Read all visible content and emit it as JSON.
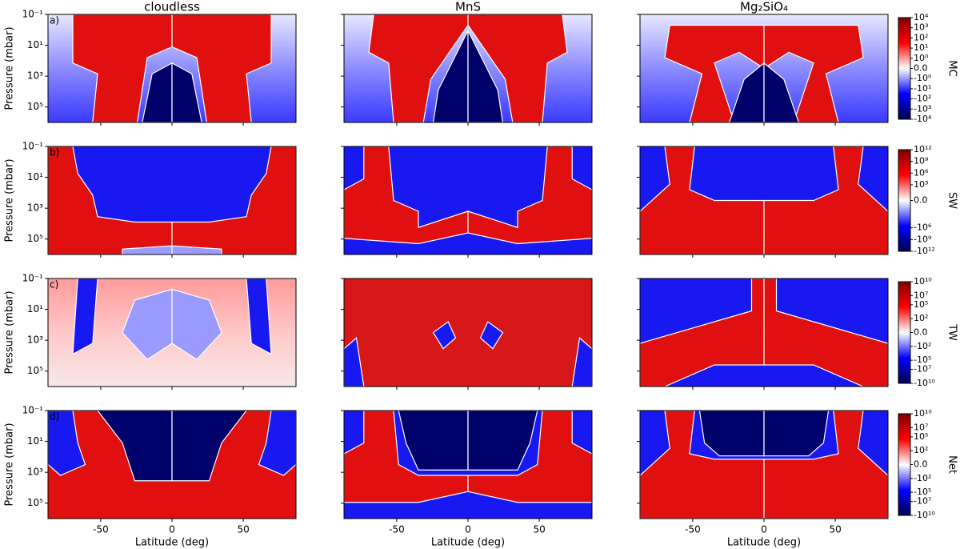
{
  "chart_data": {
    "type": "contour_grid",
    "columns": [
      "cloudless",
      "MnS",
      "Mg₂SiO₄"
    ],
    "xlabel": "Latitude (deg)",
    "ylabel": "Pressure (mbar)",
    "xlim": [
      -87,
      87
    ],
    "xticks": [
      -50,
      0,
      50
    ],
    "ylim": [
      1000000,
      0.1
    ],
    "log_y": true,
    "yticks": [
      {
        "value": 0.1,
        "label": "10⁻¹"
      },
      {
        "value": 10,
        "label": "10¹"
      },
      {
        "value": 1000,
        "label": "10³"
      },
      {
        "value": 100000,
        "label": "10⁵"
      }
    ],
    "colormap": [
      "#00004c",
      "#0000ff",
      "#ffffff",
      "#ff0000",
      "#800000"
    ],
    "rows": [
      {
        "panel": "a)",
        "colorbar_label": "MC",
        "clim": [
          -10000,
          10000
        ],
        "colorbar_ticks": [
          {
            "value": 10000,
            "label": "10⁴"
          },
          {
            "value": 1000,
            "label": "10³"
          },
          {
            "value": 100,
            "label": "10²"
          },
          {
            "value": 10,
            "label": "10¹"
          },
          {
            "value": 1,
            "label": "10⁰"
          },
          {
            "value": 0,
            "label": "0.0"
          },
          {
            "value": -1,
            "label": "-10⁰"
          },
          {
            "value": -10,
            "label": "-10¹"
          },
          {
            "value": -100,
            "label": "-10²"
          },
          {
            "value": -1000,
            "label": "-10³"
          },
          {
            "value": -10000,
            "label": "-10⁴"
          }
        ]
      },
      {
        "panel": "b)",
        "colorbar_label": "SW",
        "clim": [
          -1000000000000,
          1000000000000
        ],
        "colorbar_ticks": [
          {
            "value": 1000000000000,
            "label": "10¹²"
          },
          {
            "value": 1000000000,
            "label": "10⁹"
          },
          {
            "value": 1000000,
            "label": "10⁶"
          },
          {
            "value": 1000,
            "label": "10³"
          },
          {
            "value": 0,
            "label": "0.0"
          },
          {
            "value": -1000000,
            "label": "-10⁶"
          },
          {
            "value": -1000000000,
            "label": "-10⁹"
          },
          {
            "value": -1000000000000,
            "label": "-10¹²"
          }
        ]
      },
      {
        "panel": "c)",
        "colorbar_label": "TW",
        "clim": [
          -10000000000,
          10000000000
        ],
        "colorbar_ticks": [
          {
            "value": 10000000000,
            "label": "10¹⁰"
          },
          {
            "value": 10000000,
            "label": "10⁷"
          },
          {
            "value": 100000,
            "label": "10⁵"
          },
          {
            "value": 100,
            "label": "10²"
          },
          {
            "value": 0,
            "label": "0.0"
          },
          {
            "value": -100,
            "label": "-10²"
          },
          {
            "value": -100000,
            "label": "-10⁵"
          },
          {
            "value": -10000000,
            "label": "-10⁷"
          },
          {
            "value": -10000000000,
            "label": "-10¹⁰"
          }
        ]
      },
      {
        "panel": "d)",
        "colorbar_label": "Net",
        "clim": [
          -10000000000,
          10000000000
        ],
        "colorbar_ticks": [
          {
            "value": 10000000000,
            "label": "10¹⁰"
          },
          {
            "value": 10000000,
            "label": "10⁷"
          },
          {
            "value": 100000,
            "label": "10⁵"
          },
          {
            "value": 100,
            "label": "10²"
          },
          {
            "value": 0,
            "label": "0.0"
          },
          {
            "value": -100,
            "label": "-10²"
          },
          {
            "value": -100000,
            "label": "-10⁵"
          },
          {
            "value": -10000000,
            "label": "-10⁷"
          },
          {
            "value": -10000000000,
            "label": "-10¹⁰"
          }
        ]
      }
    ]
  }
}
